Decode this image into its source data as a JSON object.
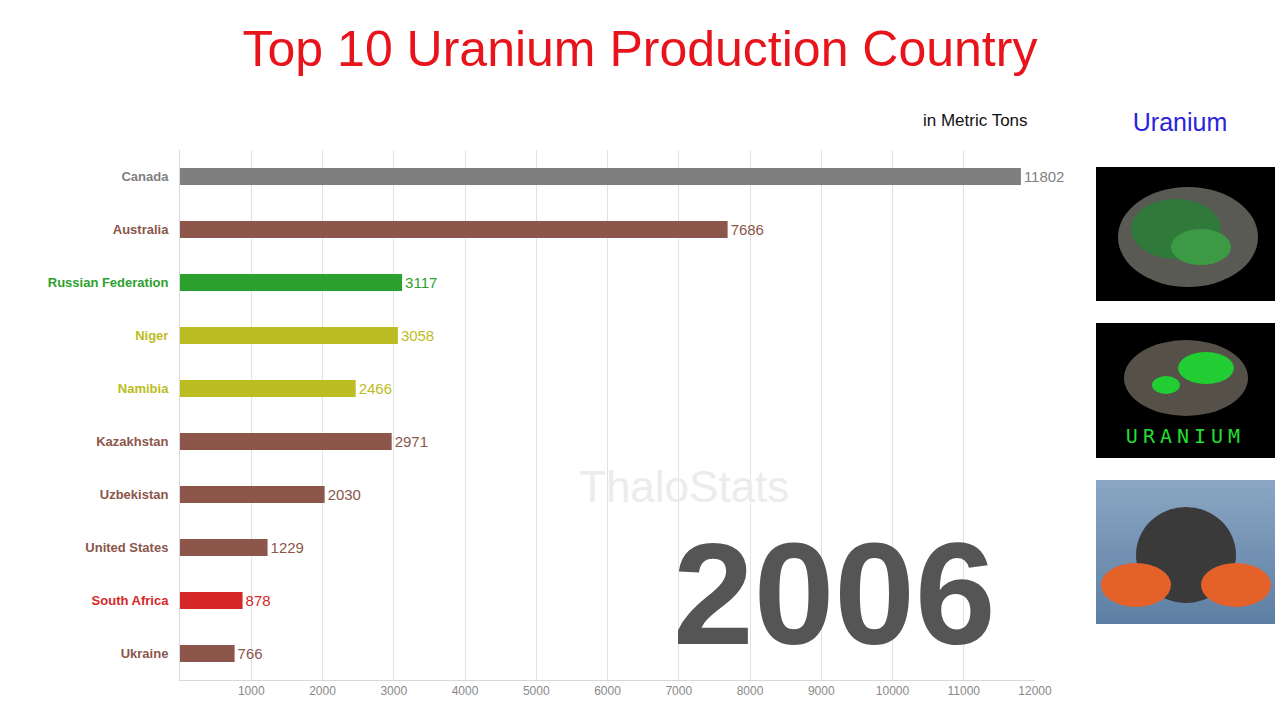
{
  "chart_data": {
    "type": "bar",
    "title": "Top 10 Uranium Production Country",
    "orientation": "horizontal",
    "categories": [
      "Canada",
      "Australia",
      "Russian Federation",
      "Niger",
      "Namibia",
      "Kazakhstan",
      "Uzbekistan",
      "United States",
      "South Africa",
      "Ukraine"
    ],
    "values": [
      11802,
      7686,
      3117,
      3058,
      2466,
      2971,
      2030,
      1229,
      878,
      766
    ],
    "colors": [
      "#7f7f7f",
      "#8c564b",
      "#2ca02c",
      "#bcbd22",
      "#bcbd22",
      "#8c564b",
      "#8c564b",
      "#8c564b",
      "#d62728",
      "#8c564b"
    ],
    "xlim": [
      0,
      12000
    ],
    "xticks": [
      1000,
      2000,
      3000,
      4000,
      5000,
      6000,
      7000,
      8000,
      9000,
      10000,
      11000,
      12000
    ],
    "grid": true,
    "data_labels": true,
    "annotations": {
      "unit": "in Metric Tons",
      "watermark": "ThaloStats",
      "year": "2006"
    }
  },
  "side_panel": {
    "title": "Uranium",
    "caption": "URANIUM"
  }
}
